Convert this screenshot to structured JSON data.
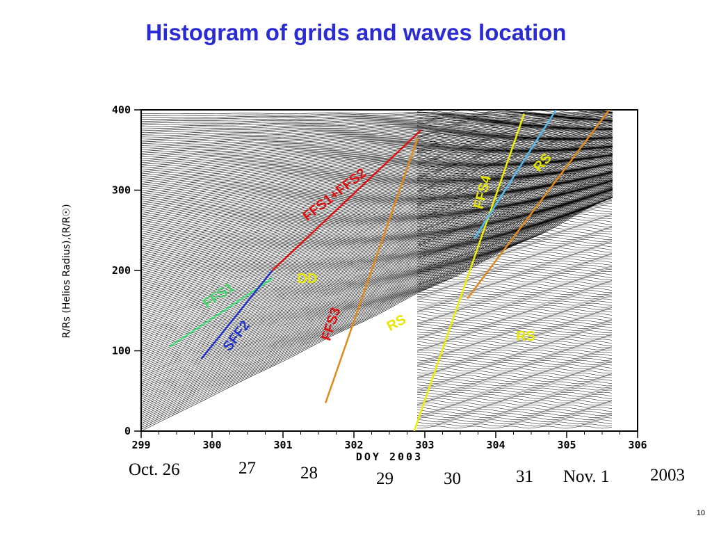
{
  "slide": {
    "title": "Histogram of grids and waves location",
    "page_number": "10"
  },
  "chart_data": {
    "type": "line",
    "xlabel": "DOY 2003",
    "ylabel": "R/Rs (Helios Radius),(R/R☉)",
    "xlim": [
      299,
      306
    ],
    "ylim": [
      0,
      400
    ],
    "x_ticks": [
      "299",
      "300",
      "301",
      "302",
      "303",
      "304",
      "305",
      "306"
    ],
    "y_ticks": [
      "0",
      "100",
      "200",
      "300",
      "400"
    ],
    "date_labels": [
      "Oct. 26",
      "27",
      "28",
      "29",
      "30",
      "31",
      "Nov. 1",
      "2003"
    ],
    "annotations": [
      {
        "text": "FFS1",
        "color": "#44d66a"
      },
      {
        "text": "SFF2",
        "color": "#2233cc"
      },
      {
        "text": "FFS1+FFS2",
        "color": "#dd1111"
      },
      {
        "text": "DD",
        "color": "#e6e600"
      },
      {
        "text": "FFS3",
        "color": "#dd1111"
      },
      {
        "text": "RS",
        "color": "#e6e600"
      },
      {
        "text": "FFS4",
        "color": "#e6e600"
      },
      {
        "text": "RS",
        "color": "#e6e600"
      },
      {
        "text": "RS",
        "color": "#e6e600"
      }
    ],
    "wave_lines": [
      {
        "color": "#44dd77",
        "points": [
          [
            299.4,
            105
          ],
          [
            300.85,
            190
          ]
        ]
      },
      {
        "color": "#2233cc",
        "points": [
          [
            299.85,
            90
          ],
          [
            300.85,
            200
          ]
        ]
      },
      {
        "color": "#dd1111",
        "points": [
          [
            300.85,
            200
          ],
          [
            302.95,
            375
          ]
        ]
      },
      {
        "color": "#e08a1a",
        "points": [
          [
            301.6,
            35
          ],
          [
            302.9,
            365
          ]
        ]
      },
      {
        "color": "#eeee00",
        "points": [
          [
            302.85,
            0
          ],
          [
            304.4,
            395
          ]
        ]
      },
      {
        "color": "#55bbee",
        "points": [
          [
            303.7,
            240
          ],
          [
            304.85,
            400
          ]
        ]
      },
      {
        "color": "#e08a1a",
        "points": [
          [
            303.6,
            165
          ],
          [
            305.6,
            400
          ]
        ]
      }
    ]
  }
}
